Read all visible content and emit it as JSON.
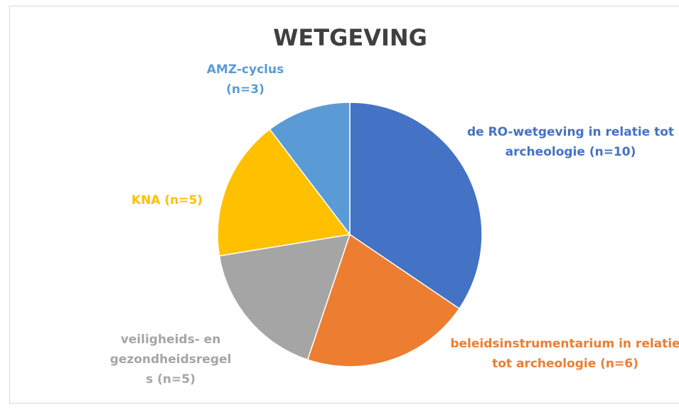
{
  "chart_data": {
    "type": "pie",
    "title": "WETGEVING",
    "categories": [
      "de RO-wetgeving in relatie tot archeologie (n=10)",
      "beleidsinstrumentarium in relatie tot archeologie (n=6)",
      "veiligheids- en gezondheidsregels (n=5)",
      "KNA (n=5)",
      "AMZ-cyclus (n=3)"
    ],
    "values": [
      10,
      6,
      5,
      5,
      3
    ],
    "colors": [
      "#4472c4",
      "#ed7d31",
      "#a5a5a5",
      "#ffc000",
      "#5b9bd5"
    ]
  }
}
